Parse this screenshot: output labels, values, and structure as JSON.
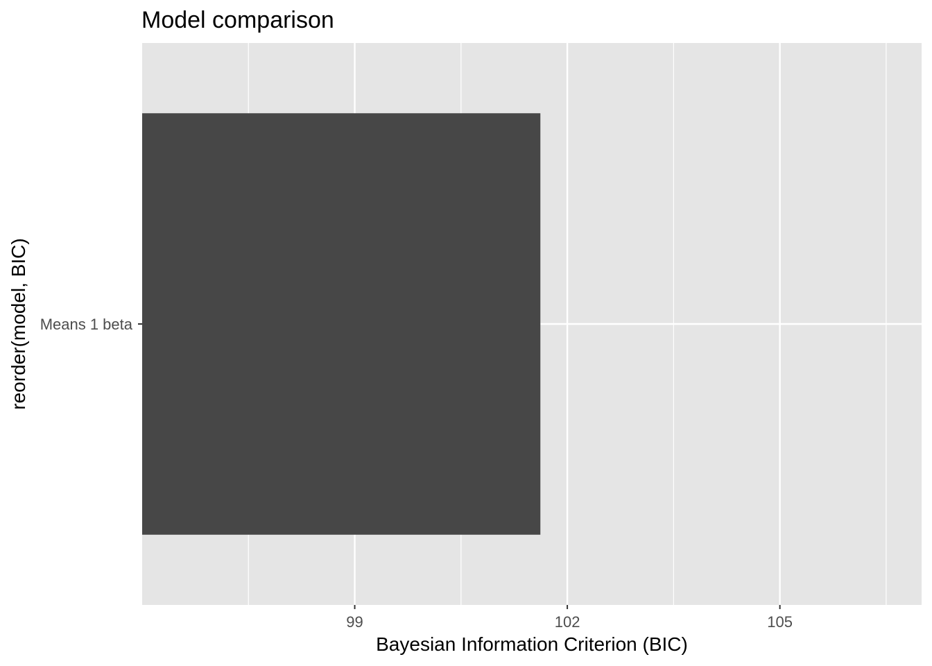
{
  "chart_data": {
    "type": "bar",
    "orientation": "horizontal",
    "title": "Model comparison",
    "xlabel": "Bayesian Information Criterion (BIC)",
    "ylabel": "reorder(model, BIC)",
    "categories": [
      "Means 1 beta"
    ],
    "values": [
      101.62
    ],
    "xlim": [
      96.0,
      107.0
    ],
    "xticks": [
      99,
      102,
      105
    ],
    "xtick_labels": [
      "99",
      "102",
      "105"
    ],
    "grid": true,
    "legend": "none",
    "colors": {
      "bar": "#474747",
      "panel": "#e5e5e5",
      "grid": "#ffffff",
      "tick_text": "#4d4d4d"
    }
  }
}
